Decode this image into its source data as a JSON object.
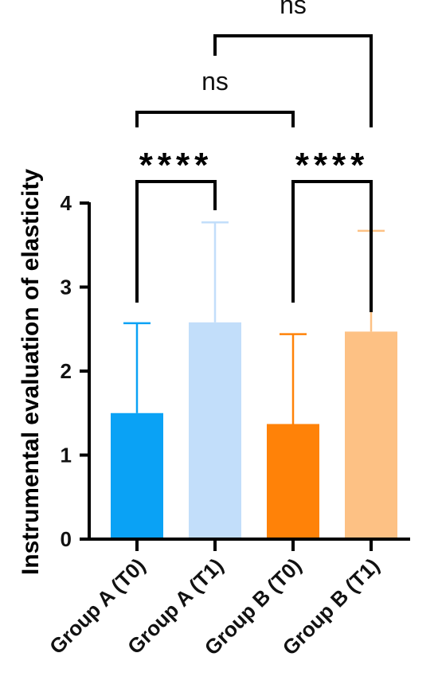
{
  "chart_data": {
    "type": "bar",
    "title": "",
    "xlabel": "",
    "ylabel": "Instrumental evaluation of elasticity",
    "ylim": [
      0,
      4
    ],
    "yticks": [
      "0",
      "1",
      "2",
      "3",
      "4"
    ],
    "categories": [
      "Group A (T0)",
      "Group A (T1)",
      "Group B (T0)",
      "Group B (T1)"
    ],
    "values": [
      1.5,
      2.58,
      1.37,
      2.47
    ],
    "error_upper": [
      2.57,
      3.77,
      2.44,
      3.67
    ],
    "colors": [
      "#0aa2f5",
      "#c2defa",
      "#ff8208",
      "#fdc184"
    ],
    "comparisons": [
      {
        "from": 0,
        "to": 1,
        "label": "****"
      },
      {
        "from": 2,
        "to": 3,
        "label": "****"
      },
      {
        "from": 0,
        "to": 2,
        "label": "ns"
      },
      {
        "from": 1,
        "to": 3,
        "label": "ns"
      }
    ]
  }
}
